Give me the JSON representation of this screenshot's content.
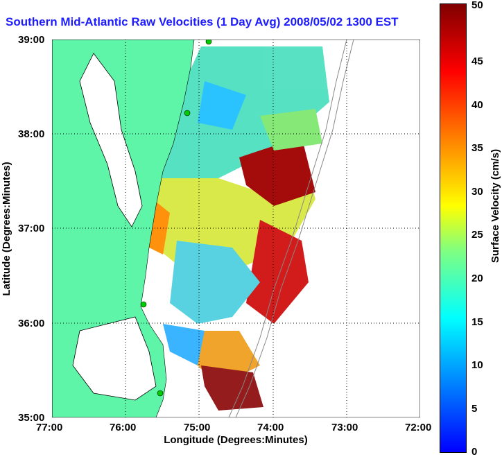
{
  "title": "Southern Mid-Atlantic Raw Velocities (1 Day Avg) 2008/05/02 1300 EST",
  "map": {
    "xlabel": "Longitude (Degrees:Minutes)",
    "ylabel": "Latitude (Degrees:Minutes)",
    "x_ticks": [
      "77:00",
      "76:00",
      "75:00",
      "74:00",
      "73:00",
      "72:00"
    ],
    "y_ticks": [
      "39:00",
      "38:00",
      "37:00",
      "36:00",
      "35:00"
    ],
    "x_range": [
      -77,
      -72
    ],
    "y_range": [
      35,
      39
    ],
    "land_color": "#5ff5a8",
    "coast_color": "#000000",
    "station_color": "#00cc00"
  },
  "colorbar": {
    "label": "Surface Velocity (cm/s)",
    "ticks": [
      "0",
      "5",
      "10",
      "15",
      "20",
      "25",
      "30",
      "35",
      "40",
      "45",
      "50"
    ],
    "range": [
      0,
      50
    ],
    "unit": "cm/s"
  }
}
